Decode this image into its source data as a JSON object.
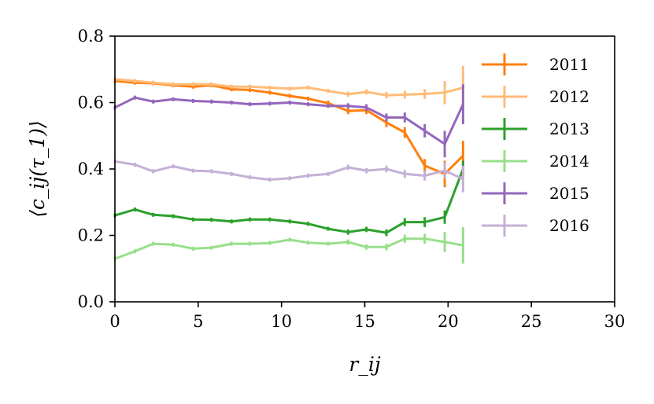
{
  "chart_data": {
    "type": "line",
    "xlabel": "r_ij",
    "ylabel": "⟨c_ij(τ_1)⟩",
    "xlim": [
      0,
      30
    ],
    "ylim": [
      0,
      0.8
    ],
    "xticks": [
      0,
      5,
      10,
      15,
      20,
      25,
      30
    ],
    "yticks": [
      0.0,
      0.2,
      0.4,
      0.6,
      0.8
    ],
    "xtick_labels": [
      "0",
      "5",
      "10",
      "15",
      "20",
      "25",
      "30"
    ],
    "ytick_labels": [
      "0.0",
      "0.2",
      "0.4",
      "0.6",
      "0.8"
    ],
    "grid": false,
    "legend_position": "right",
    "x": [
      0,
      1.2,
      2.3,
      3.5,
      4.7,
      5.8,
      7.0,
      8.1,
      9.3,
      10.5,
      11.6,
      12.8,
      14.0,
      15.1,
      16.3,
      17.4,
      18.6,
      19.8,
      20.9
    ],
    "series": [
      {
        "name": "2011",
        "color": "#ff7f0e",
        "values": [
          0.665,
          0.66,
          0.658,
          0.652,
          0.648,
          0.652,
          0.64,
          0.638,
          0.63,
          0.62,
          0.612,
          0.598,
          0.575,
          0.577,
          0.54,
          0.51,
          0.41,
          0.385,
          0.44
        ],
        "errors": [
          0.006,
          0.006,
          0.006,
          0.006,
          0.006,
          0.006,
          0.006,
          0.006,
          0.006,
          0.006,
          0.006,
          0.008,
          0.01,
          0.012,
          0.014,
          0.016,
          0.02,
          0.04,
          0.045
        ]
      },
      {
        "name": "2012",
        "color": "#ffbb78",
        "values": [
          0.67,
          0.665,
          0.66,
          0.655,
          0.655,
          0.655,
          0.648,
          0.648,
          0.645,
          0.642,
          0.645,
          0.635,
          0.625,
          0.632,
          0.622,
          0.624,
          0.626,
          0.63,
          0.645
        ],
        "errors": [
          0.006,
          0.006,
          0.006,
          0.006,
          0.006,
          0.006,
          0.006,
          0.006,
          0.006,
          0.006,
          0.006,
          0.006,
          0.008,
          0.008,
          0.01,
          0.012,
          0.015,
          0.035,
          0.065
        ]
      },
      {
        "name": "2013",
        "color": "#2ca02c",
        "values": [
          0.26,
          0.278,
          0.262,
          0.258,
          0.248,
          0.247,
          0.242,
          0.248,
          0.248,
          0.242,
          0.235,
          0.22,
          0.21,
          0.218,
          0.208,
          0.24,
          0.24,
          0.255,
          0.4
        ],
        "errors": [
          0.006,
          0.006,
          0.006,
          0.006,
          0.006,
          0.006,
          0.006,
          0.006,
          0.006,
          0.006,
          0.006,
          0.006,
          0.008,
          0.008,
          0.01,
          0.012,
          0.015,
          0.02,
          0.025
        ]
      },
      {
        "name": "2014",
        "color": "#98df8a",
        "values": [
          0.13,
          0.152,
          0.175,
          0.172,
          0.16,
          0.163,
          0.175,
          0.175,
          0.177,
          0.187,
          0.178,
          0.175,
          0.18,
          0.165,
          0.165,
          0.19,
          0.19,
          0.18,
          0.17
        ],
        "errors": [
          0.006,
          0.006,
          0.006,
          0.006,
          0.006,
          0.006,
          0.006,
          0.006,
          0.006,
          0.006,
          0.006,
          0.006,
          0.008,
          0.008,
          0.01,
          0.012,
          0.015,
          0.03,
          0.055
        ]
      },
      {
        "name": "2015",
        "color": "#9467bd",
        "values": [
          0.585,
          0.615,
          0.603,
          0.61,
          0.605,
          0.603,
          0.6,
          0.595,
          0.597,
          0.6,
          0.595,
          0.59,
          0.59,
          0.585,
          0.555,
          0.555,
          0.515,
          0.475,
          0.595
        ],
        "errors": [
          0.006,
          0.006,
          0.006,
          0.006,
          0.006,
          0.006,
          0.006,
          0.006,
          0.006,
          0.006,
          0.006,
          0.006,
          0.008,
          0.01,
          0.012,
          0.015,
          0.02,
          0.04,
          0.06
        ]
      },
      {
        "name": "2016",
        "color": "#c5b0d5",
        "values": [
          0.423,
          0.413,
          0.393,
          0.408,
          0.395,
          0.393,
          0.385,
          0.375,
          0.368,
          0.372,
          0.38,
          0.385,
          0.405,
          0.395,
          0.4,
          0.385,
          0.38,
          0.395,
          0.37
        ],
        "errors": [
          0.006,
          0.006,
          0.006,
          0.006,
          0.006,
          0.006,
          0.006,
          0.006,
          0.006,
          0.006,
          0.006,
          0.006,
          0.008,
          0.008,
          0.01,
          0.012,
          0.015,
          0.025,
          0.04
        ]
      }
    ]
  }
}
